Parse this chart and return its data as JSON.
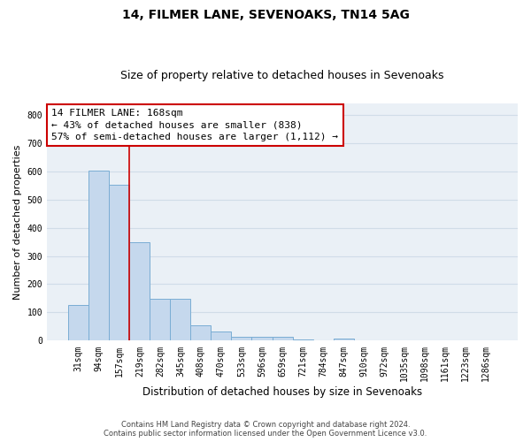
{
  "title1": "14, FILMER LANE, SEVENOAKS, TN14 5AG",
  "title2": "Size of property relative to detached houses in Sevenoaks",
  "xlabel": "Distribution of detached houses by size in Sevenoaks",
  "ylabel": "Number of detached properties",
  "categories": [
    "31sqm",
    "94sqm",
    "157sqm",
    "219sqm",
    "282sqm",
    "345sqm",
    "408sqm",
    "470sqm",
    "533sqm",
    "596sqm",
    "659sqm",
    "721sqm",
    "784sqm",
    "847sqm",
    "910sqm",
    "972sqm",
    "1035sqm",
    "1098sqm",
    "1161sqm",
    "1223sqm",
    "1286sqm"
  ],
  "values": [
    125,
    603,
    552,
    348,
    148,
    148,
    56,
    32,
    15,
    13,
    13,
    6,
    0,
    7,
    0,
    0,
    0,
    0,
    0,
    0,
    0
  ],
  "bar_color": "#c5d8ed",
  "bar_edge_color": "#7aadd4",
  "vline_x": 2.5,
  "vline_color": "#cc0000",
  "annotation_line1": "14 FILMER LANE: 168sqm",
  "annotation_line2": "← 43% of detached houses are smaller (838)",
  "annotation_line3": "57% of semi-detached houses are larger (1,112) →",
  "annotation_box_color": "#ffffff",
  "annotation_box_edge_color": "#cc0000",
  "footer": "Contains HM Land Registry data © Crown copyright and database right 2024.\nContains public sector information licensed under the Open Government Licence v3.0.",
  "ylim": [
    0,
    840
  ],
  "yticks": [
    0,
    100,
    200,
    300,
    400,
    500,
    600,
    700,
    800
  ],
  "grid_color": "#d0dce8",
  "bg_color": "#eaf0f6",
  "title1_fontsize": 10,
  "title2_fontsize": 9,
  "xlabel_fontsize": 8.5,
  "ylabel_fontsize": 8,
  "tick_fontsize": 7,
  "annotation_fontsize": 8
}
